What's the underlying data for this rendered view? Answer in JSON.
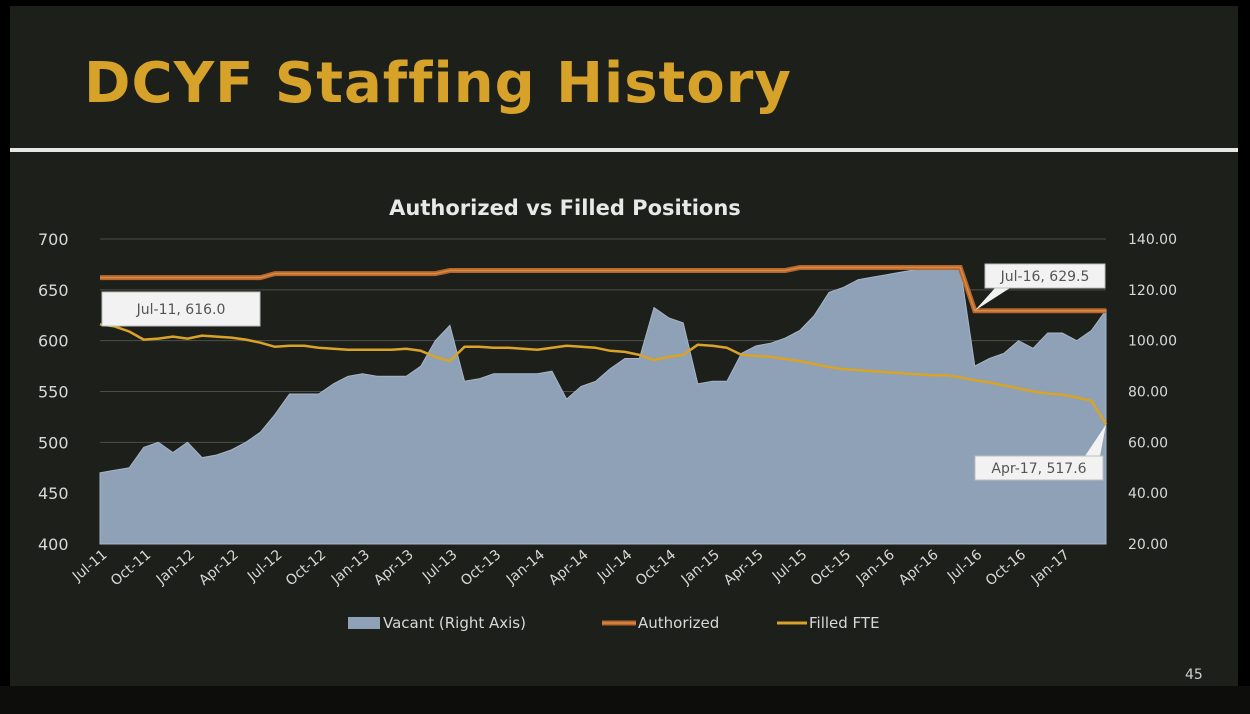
{
  "slide": {
    "title": "DCYF Staffing History",
    "page_number": "45"
  },
  "chart_data": {
    "type": "line+area",
    "title": "Authorized vs Filled Positions",
    "xlabel": "",
    "ylabel": "",
    "ylim": [
      400,
      700
    ],
    "y2lim": [
      20,
      140
    ],
    "yticks": [
      "700",
      "650",
      "600",
      "550",
      "500",
      "450",
      "400"
    ],
    "y2ticks": [
      "140.00",
      "120.00",
      "100.00",
      "80.00",
      "60.00",
      "40.00",
      "20.00"
    ],
    "xticks": [
      "Jul-11",
      "Oct-11",
      "Jan-12",
      "Apr-12",
      "Jul-12",
      "Oct-12",
      "Jan-13",
      "Apr-13",
      "Jul-13",
      "Oct-13",
      "Jan-14",
      "Apr-14",
      "Jul-14",
      "Oct-14",
      "Jan-15",
      "Apr-15",
      "Jul-15",
      "Oct-15",
      "Jan-16",
      "Apr-16",
      "Jul-16",
      "Oct-16",
      "Jan-17"
    ],
    "x_range": [
      "Jul-11",
      "Apr-17"
    ],
    "grid": true,
    "legend_position": "bottom",
    "colors": {
      "vacant": "#8ea1b6",
      "authorized": "#b8672c",
      "filled": "#d9a327"
    },
    "series": [
      {
        "name": "Vacant (Right Axis)",
        "axis": "right",
        "style": "area",
        "x": [
          "Jul-11",
          "Aug-11",
          "Sep-11",
          "Oct-11",
          "Nov-11",
          "Dec-11",
          "Jan-12",
          "Feb-12",
          "Mar-12",
          "Apr-12",
          "May-12",
          "Jun-12",
          "Jul-12",
          "Aug-12",
          "Sep-12",
          "Oct-12",
          "Nov-12",
          "Dec-12",
          "Jan-13",
          "Feb-13",
          "Mar-13",
          "Apr-13",
          "May-13",
          "Jun-13",
          "Jul-13",
          "Aug-13",
          "Sep-13",
          "Oct-13",
          "Nov-13",
          "Dec-13",
          "Jan-14",
          "Feb-14",
          "Mar-14",
          "Apr-14",
          "May-14",
          "Jun-14",
          "Jul-14",
          "Aug-14",
          "Sep-14",
          "Oct-14",
          "Nov-14",
          "Dec-14",
          "Jan-15",
          "Feb-15",
          "Mar-15",
          "Apr-15",
          "May-15",
          "Jun-15",
          "Jul-15",
          "Aug-15",
          "Sep-15",
          "Oct-15",
          "Nov-15",
          "Dec-15",
          "Jan-16",
          "Feb-16",
          "Mar-16",
          "Apr-16",
          "May-16",
          "Jun-16",
          "Jul-16",
          "Aug-16",
          "Sep-16",
          "Oct-16",
          "Nov-16",
          "Dec-16",
          "Jan-17",
          "Feb-17",
          "Mar-17",
          "Apr-17"
        ],
        "values": [
          48,
          49,
          50,
          58,
          60,
          56,
          60,
          54,
          55,
          57,
          60,
          64,
          71,
          79,
          79,
          79,
          83,
          86,
          87,
          86,
          86,
          86,
          90,
          100,
          106,
          84,
          85,
          87,
          87,
          87,
          87,
          88,
          77,
          82,
          84,
          89,
          93,
          93,
          113,
          109,
          107,
          83,
          84,
          84,
          95,
          98,
          99,
          101,
          104,
          110,
          119,
          121,
          124,
          125,
          126,
          127,
          128,
          129,
          129,
          129,
          90,
          93,
          95,
          100,
          97,
          103,
          103,
          100,
          104,
          112
        ]
      },
      {
        "name": "Authorized",
        "axis": "left",
        "style": "line",
        "x": [
          "Jul-11",
          "Jun-12",
          "Jul-12",
          "Jun-13",
          "Jul-13",
          "Jun-15",
          "Jul-15",
          "Jun-16",
          "Jul-16",
          "Apr-17"
        ],
        "values": [
          662,
          662,
          666,
          666,
          669,
          669,
          672,
          672,
          629.5,
          629.5
        ]
      },
      {
        "name": "Filled FTE",
        "axis": "left",
        "style": "line",
        "x": [
          "Jul-11",
          "Aug-11",
          "Sep-11",
          "Oct-11",
          "Nov-11",
          "Dec-11",
          "Jan-12",
          "Feb-12",
          "Mar-12",
          "Apr-12",
          "May-12",
          "Jun-12",
          "Jul-12",
          "Aug-12",
          "Sep-12",
          "Oct-12",
          "Nov-12",
          "Dec-12",
          "Jan-13",
          "Feb-13",
          "Mar-13",
          "Apr-13",
          "May-13",
          "Jun-13",
          "Jul-13",
          "Aug-13",
          "Sep-13",
          "Oct-13",
          "Nov-13",
          "Dec-13",
          "Jan-14",
          "Feb-14",
          "Mar-14",
          "Apr-14",
          "May-14",
          "Jun-14",
          "Jul-14",
          "Aug-14",
          "Sep-14",
          "Oct-14",
          "Nov-14",
          "Dec-14",
          "Jan-15",
          "Feb-15",
          "Mar-15",
          "Apr-15",
          "May-15",
          "Jun-15",
          "Jul-15",
          "Aug-15",
          "Sep-15",
          "Oct-15",
          "Nov-15",
          "Dec-15",
          "Jan-16",
          "Feb-16",
          "Mar-16",
          "Apr-16",
          "May-16",
          "Jun-16",
          "Jul-16",
          "Aug-16",
          "Sep-16",
          "Oct-16",
          "Nov-16",
          "Dec-16",
          "Jan-17",
          "Feb-17",
          "Mar-17",
          "Apr-17"
        ],
        "values": [
          616,
          614,
          609,
          601,
          602,
          604,
          602,
          605,
          604,
          603,
          601,
          598,
          594,
          595,
          595,
          593,
          592,
          591,
          591,
          591,
          591,
          592,
          590,
          584,
          580,
          594,
          594,
          593,
          593,
          592,
          591,
          593,
          595,
          594,
          593,
          590,
          589,
          586,
          581,
          584,
          586,
          596,
          595,
          593,
          586,
          585,
          584,
          582,
          580,
          577,
          574,
          572,
          571,
          570,
          569,
          568,
          567,
          566,
          566,
          564,
          561,
          559,
          556,
          553,
          550,
          548,
          547,
          544,
          541,
          517.6
        ]
      }
    ],
    "annotations": [
      {
        "label": "Jul-11, 616.0"
      },
      {
        "label": "Jul-16, 629.5"
      },
      {
        "label": "Apr-17, 517.6"
      }
    ],
    "legend": [
      {
        "label": "Vacant (Right Axis)"
      },
      {
        "label": "Authorized"
      },
      {
        "label": "Filled FTE"
      }
    ]
  }
}
